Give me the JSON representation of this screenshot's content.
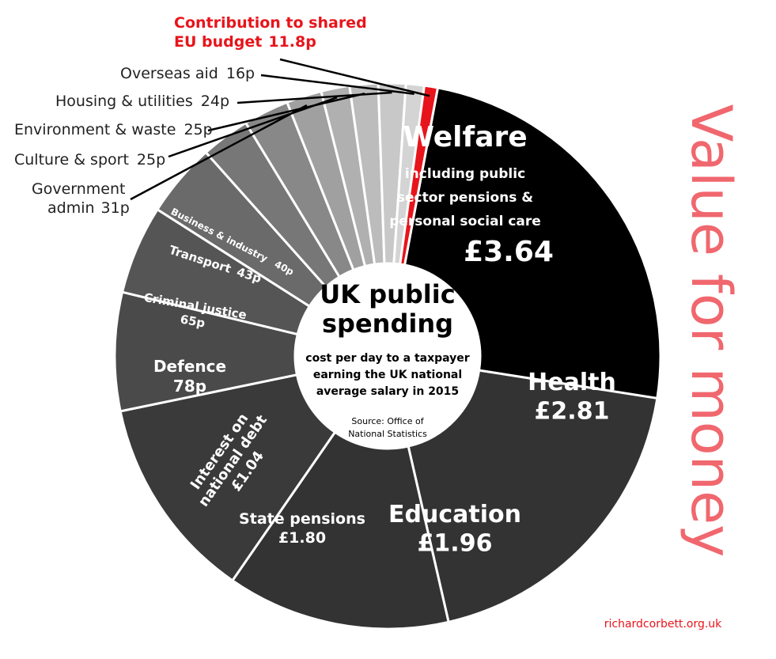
{
  "side_title": "Value for money",
  "footer_source": "richardcorbett.org.uk",
  "center": {
    "title_lines": [
      "UK public",
      "spending"
    ],
    "subtitle_lines": [
      "cost per day to a taxpayer",
      "earning the UK national",
      "average salary in 2015"
    ],
    "source_lines": [
      "Source: Office of",
      "National Statistics"
    ]
  },
  "chart_data": {
    "type": "pie",
    "variant": "donut",
    "unit": "£ per day",
    "direction": "clockwise from top",
    "colors": {
      "welfare": "#000000",
      "large_slices": "#333333",
      "mid_slices": "#4d4d4d",
      "small_slices": "#777777",
      "light_slices": "#c4c4c4",
      "eu": "#e8141b",
      "side_title": "#f0676e",
      "footer": "#e8141b"
    },
    "slices": [
      {
        "id": "welfare",
        "value": 3.64,
        "label_lines": [
          "Welfare"
        ],
        "sub_lines": [
          "including public",
          "sector pensions &",
          "personal social care"
        ],
        "value_label": "£3.64",
        "color": "#000000"
      },
      {
        "id": "health",
        "value": 2.81,
        "label_lines": [
          "Health"
        ],
        "value_label": "£2.81",
        "color": "#333333"
      },
      {
        "id": "education",
        "value": 1.96,
        "label_lines": [
          "Education"
        ],
        "value_label": "£1.96",
        "color": "#333333"
      },
      {
        "id": "state-pensions",
        "value": 1.8,
        "label_lines": [
          "State pensions"
        ],
        "value_label": "£1.80",
        "color": "#3a3a3a"
      },
      {
        "id": "interest",
        "value": 1.04,
        "label_lines": [
          "Interest on",
          "national debt"
        ],
        "value_label": "£1.04",
        "color": "#4a4a4a"
      },
      {
        "id": "defence",
        "value": 0.78,
        "label_lines": [
          "Defence"
        ],
        "value_label": "78p",
        "color": "#555555"
      },
      {
        "id": "criminal-justice",
        "value": 0.65,
        "label_lines": [
          "Criminal justice"
        ],
        "value_label": "65p",
        "color": "#6a6a6a"
      },
      {
        "id": "transport",
        "value": 0.43,
        "label_lines": [
          "Transport"
        ],
        "value_label": "43p",
        "color": "#777777"
      },
      {
        "id": "business",
        "value": 0.4,
        "label_lines": [
          "Business & industry"
        ],
        "value_label": "40p",
        "color": "#888888"
      },
      {
        "id": "gov-admin",
        "value": 0.31,
        "label_lines": [
          "Government",
          "admin"
        ],
        "value_label": "31p",
        "color": "#a0a0a0"
      },
      {
        "id": "culture",
        "value": 0.25,
        "label_lines": [
          "Culture & sport"
        ],
        "value_label": "25p",
        "color": "#b0b0b0"
      },
      {
        "id": "environment",
        "value": 0.25,
        "label_lines": [
          "Environment & waste"
        ],
        "value_label": "25p",
        "color": "#bcbcbc"
      },
      {
        "id": "housing",
        "value": 0.24,
        "label_lines": [
          "Housing & utilities"
        ],
        "value_label": "24p",
        "color": "#c8c8c8"
      },
      {
        "id": "overseas-aid",
        "value": 0.16,
        "label_lines": [
          "Overseas aid"
        ],
        "value_label": "16p",
        "color": "#d4d4d4"
      },
      {
        "id": "eu-budget",
        "value": 0.118,
        "label_lines": [
          "Contribution to shared",
          "EU budget"
        ],
        "value_label": "11.8p",
        "color": "#e8141b"
      }
    ]
  }
}
